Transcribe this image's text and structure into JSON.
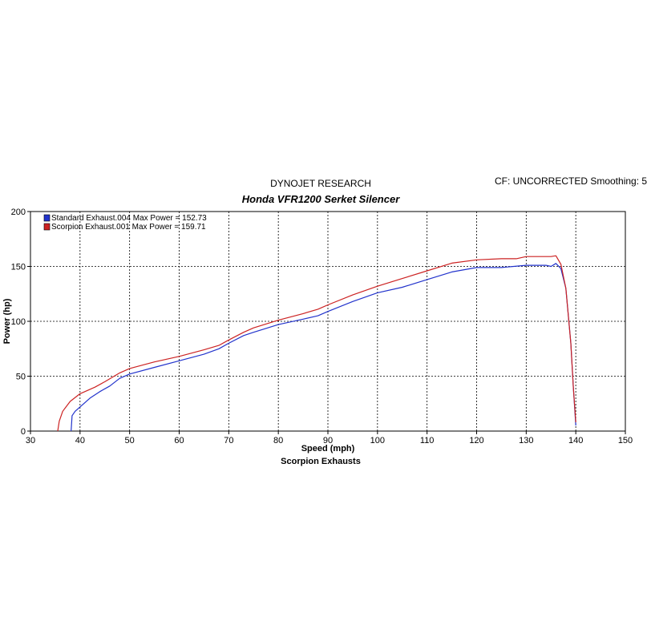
{
  "header": {
    "company": "DYNOJET RESEARCH",
    "cf_text": "CF: UNCORRECTED  Smoothing: 5"
  },
  "chart_data": {
    "type": "line",
    "title": "Honda VFR1200 Serket Silencer",
    "xlabel": "Speed (mph)",
    "ylabel": "Power (hp)",
    "footer": "Scorpion Exhausts",
    "xlim": [
      30,
      150
    ],
    "ylim": [
      0,
      200
    ],
    "xticks": [
      "30",
      "40",
      "50",
      "60",
      "70",
      "80",
      "90",
      "100",
      "110",
      "120",
      "130",
      "140",
      "150"
    ],
    "yticks": [
      "0",
      "50",
      "100",
      "150",
      "200"
    ],
    "grid": true,
    "legend_position": "top-left",
    "series": [
      {
        "name": "Standard Exhaust.004 Max Power = 152.73",
        "color": "#2233cc",
        "points": [
          [
            38.2,
            0
          ],
          [
            38.4,
            14
          ],
          [
            39,
            18
          ],
          [
            40,
            22
          ],
          [
            42,
            30
          ],
          [
            44,
            36
          ],
          [
            46,
            41
          ],
          [
            48,
            48
          ],
          [
            50,
            52
          ],
          [
            55,
            58
          ],
          [
            60,
            64
          ],
          [
            65,
            70
          ],
          [
            68,
            75
          ],
          [
            70,
            80
          ],
          [
            73,
            87
          ],
          [
            75,
            90
          ],
          [
            80,
            97
          ],
          [
            85,
            102
          ],
          [
            88,
            105
          ],
          [
            90,
            109
          ],
          [
            95,
            118
          ],
          [
            100,
            126
          ],
          [
            105,
            131
          ],
          [
            110,
            138
          ],
          [
            115,
            145
          ],
          [
            120,
            149
          ],
          [
            125,
            149
          ],
          [
            130,
            151
          ],
          [
            134,
            151
          ],
          [
            135,
            150
          ],
          [
            136,
            152.7
          ],
          [
            137,
            148
          ],
          [
            138,
            130
          ],
          [
            139,
            80
          ],
          [
            139.5,
            40
          ],
          [
            140,
            5
          ]
        ]
      },
      {
        "name": "Scorpion Exhaust.001 Max Power = 159.71",
        "color": "#cc2222",
        "points": [
          [
            35.5,
            0
          ],
          [
            35.8,
            9
          ],
          [
            36.5,
            18
          ],
          [
            38,
            27
          ],
          [
            40,
            34
          ],
          [
            43,
            40
          ],
          [
            45,
            45
          ],
          [
            48,
            53
          ],
          [
            50,
            57
          ],
          [
            55,
            63
          ],
          [
            60,
            68
          ],
          [
            65,
            74
          ],
          [
            68,
            78
          ],
          [
            70,
            83
          ],
          [
            73,
            90
          ],
          [
            75,
            94
          ],
          [
            80,
            101
          ],
          [
            85,
            107
          ],
          [
            88,
            111
          ],
          [
            90,
            115
          ],
          [
            95,
            124
          ],
          [
            100,
            132
          ],
          [
            105,
            139
          ],
          [
            110,
            146
          ],
          [
            115,
            153
          ],
          [
            120,
            156
          ],
          [
            125,
            157
          ],
          [
            128,
            157
          ],
          [
            130,
            159
          ],
          [
            133,
            159
          ],
          [
            135,
            159
          ],
          [
            136,
            159.7
          ],
          [
            137,
            152
          ],
          [
            138,
            130
          ],
          [
            139,
            80
          ],
          [
            139.5,
            40
          ],
          [
            140,
            8
          ]
        ]
      }
    ]
  }
}
